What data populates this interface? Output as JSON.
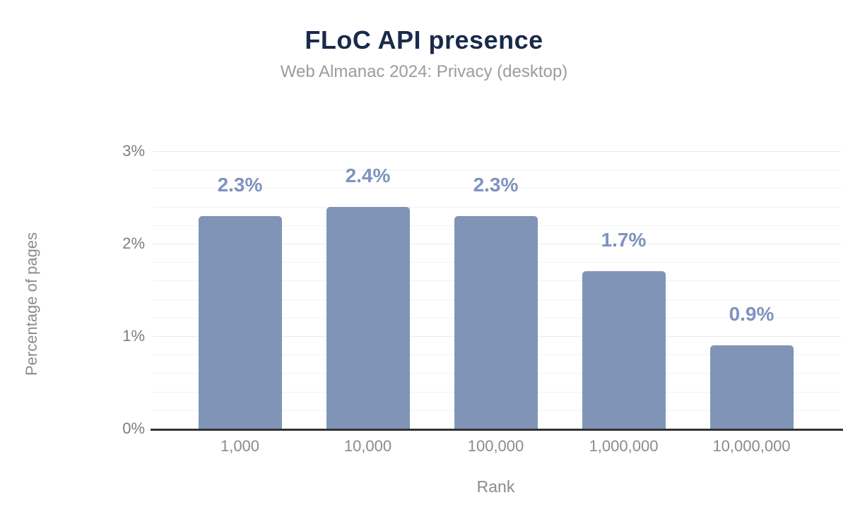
{
  "title": "FLoC API presence",
  "subtitle": "Web Almanac 2024: Privacy (desktop)",
  "chart_data": {
    "type": "bar",
    "title": "FLoC API presence",
    "subtitle": "Web Almanac 2024: Privacy (desktop)",
    "categories": [
      "1,000",
      "10,000",
      "100,000",
      "1,000,000",
      "10,000,000"
    ],
    "values": [
      2.3,
      2.4,
      2.3,
      1.7,
      0.9
    ],
    "value_labels": [
      "2.3%",
      "2.4%",
      "2.3%",
      "1.7%",
      "0.9%"
    ],
    "xlabel": "Rank",
    "ylabel": "Percentage of pages",
    "ylim": [
      0,
      3
    ],
    "ytick_values": [
      0,
      1,
      2,
      3
    ],
    "ytick_labels": [
      "0%",
      "1%",
      "2%",
      "3%"
    ],
    "grid_minor_step": 0.2,
    "grid": "horizontal",
    "legend": "none"
  },
  "colors": {
    "bar": "#8094b7",
    "data_label": "#7e93be",
    "title": "#1a2a4a",
    "subtitle": "#9c9c9c",
    "axis_text": "#8b8b8b",
    "tick_text": "#7d7d7d",
    "gridline": "#f2f2f2",
    "axis_line": "#333333",
    "background": "#ffffff"
  }
}
